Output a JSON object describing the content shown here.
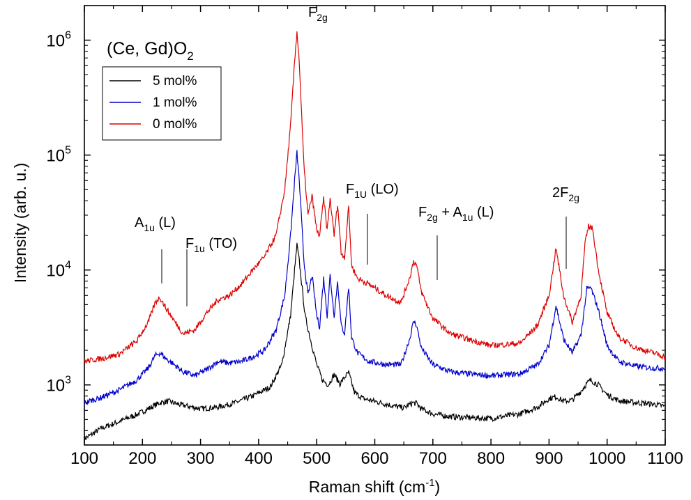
{
  "chart_data": {
    "type": "line",
    "title": "(Ce, Gd)O",
    "title_subscript": "2",
    "xlabel": "Raman shift (cm",
    "xlabel_superscript": "-1",
    "xlabel_suffix": ")",
    "ylabel": "Intensity (arb. u.)",
    "xlim": [
      100,
      1100
    ],
    "ylim": [
      300,
      2000000
    ],
    "yscale": "log",
    "x_ticks": [
      "100",
      "200",
      "300",
      "400",
      "500",
      "600",
      "700",
      "800",
      "900",
      "1000",
      "1100"
    ],
    "y_ticks": [
      {
        "base": "10",
        "exp": "3",
        "value": 1000
      },
      {
        "base": "10",
        "exp": "4",
        "value": 10000
      },
      {
        "base": "10",
        "exp": "5",
        "value": 100000
      },
      {
        "base": "10",
        "exp": "6",
        "value": 1000000
      }
    ],
    "grid": false,
    "legend_position": "top-left",
    "series": [
      {
        "name": "5 mol%",
        "color": "#000000",
        "x": [
          100,
          130,
          160,
          190,
          210,
          230,
          245,
          260,
          280,
          300,
          330,
          360,
          390,
          420,
          440,
          455,
          462,
          466,
          470,
          480,
          490,
          500,
          510,
          520,
          530,
          540,
          550,
          555,
          565,
          580,
          600,
          630,
          650,
          665,
          672,
          680,
          700,
          730,
          760,
          800,
          850,
          880,
          900,
          912,
          925,
          940,
          955,
          965,
          972,
          985,
          1000,
          1020,
          1050,
          1080,
          1100
        ],
        "y": [
          340,
          420,
          480,
          550,
          620,
          700,
          720,
          680,
          650,
          620,
          640,
          700,
          800,
          960,
          1500,
          4000,
          10000,
          16500,
          12000,
          4000,
          2400,
          1500,
          1100,
          1000,
          1230,
          1020,
          1200,
          1280,
          860,
          760,
          720,
          660,
          630,
          700,
          690,
          620,
          560,
          530,
          520,
          510,
          560,
          640,
          760,
          790,
          720,
          740,
          880,
          1030,
          1100,
          1000,
          820,
          730,
          700,
          680,
          650
        ]
      },
      {
        "name": "1 mol%",
        "color": "#0000cc",
        "x": [
          100,
          130,
          160,
          190,
          210,
          222,
          230,
          240,
          255,
          270,
          290,
          310,
          330,
          350,
          370,
          390,
          410,
          430,
          445,
          455,
          462,
          466,
          470,
          478,
          485,
          492,
          500,
          505,
          512,
          518,
          523,
          530,
          536,
          542,
          548,
          555,
          560,
          570,
          590,
          620,
          645,
          660,
          667,
          672,
          680,
          700,
          730,
          760,
          800,
          850,
          880,
          900,
          912,
          925,
          940,
          955,
          965,
          972,
          985,
          1000,
          1020,
          1050,
          1080,
          1100
        ],
        "y": [
          700,
          780,
          900,
          1100,
          1400,
          1800,
          1900,
          1700,
          1500,
          1300,
          1200,
          1350,
          1600,
          1550,
          1600,
          1750,
          2000,
          3000,
          6000,
          20000,
          60000,
          105000,
          60000,
          12000,
          6000,
          9000,
          4000,
          3200,
          8500,
          4000,
          9000,
          4000,
          8000,
          3300,
          2800,
          7200,
          2600,
          1900,
          1600,
          1500,
          1500,
          2500,
          3600,
          3300,
          2100,
          1500,
          1300,
          1250,
          1200,
          1250,
          1500,
          2200,
          4900,
          2500,
          1900,
          2700,
          6800,
          7000,
          4500,
          2200,
          1600,
          1450,
          1400,
          1400
        ]
      },
      {
        "name": "0 mol%",
        "color": "#dd0000",
        "x": [
          100,
          130,
          160,
          190,
          210,
          222,
          230,
          240,
          255,
          270,
          290,
          310,
          330,
          350,
          370,
          390,
          410,
          430,
          445,
          455,
          462,
          466,
          470,
          478,
          485,
          492,
          500,
          505,
          512,
          518,
          523,
          530,
          536,
          542,
          548,
          555,
          560,
          570,
          590,
          620,
          645,
          660,
          667,
          672,
          680,
          700,
          730,
          760,
          800,
          850,
          880,
          900,
          912,
          925,
          940,
          955,
          962,
          968,
          975,
          985,
          1000,
          1020,
          1050,
          1080,
          1100
        ],
        "y": [
          1600,
          1700,
          1850,
          2400,
          3500,
          5200,
          5800,
          4700,
          3600,
          2800,
          3000,
          4200,
          5500,
          6000,
          7500,
          10000,
          13000,
          20000,
          50000,
          180000,
          650000,
          1200000,
          650000,
          80000,
          30000,
          44000,
          22000,
          20000,
          42000,
          22000,
          42000,
          20000,
          38000,
          14000,
          13000,
          36000,
          11000,
          8500,
          7500,
          6000,
          5200,
          8500,
          12000,
          11000,
          6500,
          3800,
          2800,
          2500,
          2200,
          2300,
          3300,
          6000,
          15500,
          6000,
          3500,
          6000,
          17000,
          24000,
          23000,
          10000,
          4200,
          2600,
          2100,
          1900,
          1750
        ]
      }
    ],
    "annotations": [
      {
        "base": "A",
        "sub": "1u",
        "tail": " (L)",
        "x": 230
      },
      {
        "base": "F",
        "sub": "1u",
        "tail": " (TO)",
        "x": 273
      },
      {
        "base": "F",
        "sub": "2g",
        "tail": "",
        "x": 466
      },
      {
        "base": "F",
        "sub": "1U",
        "tail": " (LO)",
        "x": 592
      },
      {
        "base": "F",
        "sub": "2g",
        "tail": " + A",
        "sub2": "1u",
        "tail2": " (L)",
        "x": 710
      },
      {
        "base": "2F",
        "sub": "2g",
        "tail": "",
        "x": 932
      }
    ]
  }
}
